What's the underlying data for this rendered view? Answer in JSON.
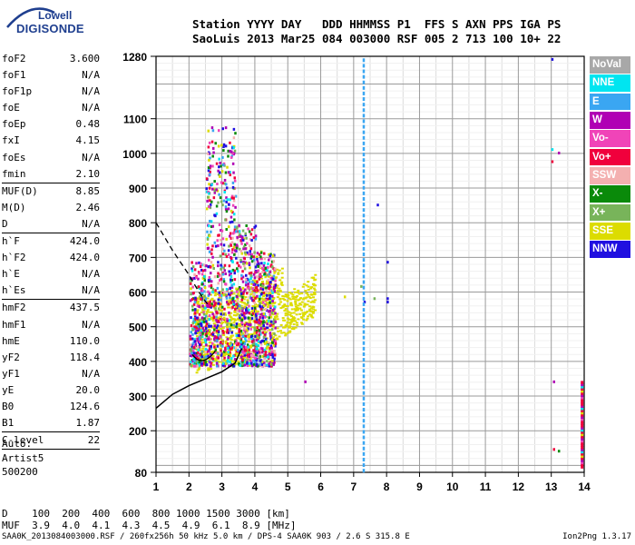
{
  "logo": {
    "line1": "Lowell",
    "line2": "DIGISONDE"
  },
  "header": {
    "line1": "Station YYYY DAY   DDD HHMMSS P1  FFS S AXN PPS IGA PS",
    "line2": "SaoLuis 2013 Mar25 084 003000 RSF 005 2 713 100 10+ 22"
  },
  "params": [
    {
      "name": "foF2",
      "value": "3.600"
    },
    {
      "name": "foF1",
      "value": "N/A"
    },
    {
      "name": "foF1p",
      "value": "N/A"
    },
    {
      "name": "foE",
      "value": "N/A"
    },
    {
      "name": "foEp",
      "value": "0.48"
    },
    {
      "name": "fxI",
      "value": "4.15"
    },
    {
      "name": "foEs",
      "value": "N/A"
    },
    {
      "name": "fmin",
      "value": "2.10",
      "sep": true
    },
    {
      "name": "MUF(D)",
      "value": "8.85"
    },
    {
      "name": "M(D)",
      "value": "2.46"
    },
    {
      "name": "D",
      "value": "N/A",
      "sep": true
    },
    {
      "name": "h`F",
      "value": "424.0"
    },
    {
      "name": "h`F2",
      "value": "424.0"
    },
    {
      "name": "h`E",
      "value": "N/A"
    },
    {
      "name": "h`Es",
      "value": "N/A",
      "sep": true
    },
    {
      "name": "hmF2",
      "value": "437.5"
    },
    {
      "name": "hmF1",
      "value": "N/A"
    },
    {
      "name": "hmE",
      "value": "110.0"
    },
    {
      "name": "yF2",
      "value": "118.4"
    },
    {
      "name": "yF1",
      "value": "N/A"
    },
    {
      "name": "yE",
      "value": "20.0"
    },
    {
      "name": "B0",
      "value": "124.6"
    },
    {
      "name": "B1",
      "value": "1.87",
      "sep": true
    },
    {
      "name": "C-level",
      "value": "22",
      "sep": true
    }
  ],
  "auto": {
    "line1": "Auto:",
    "line2": "Artist5",
    "line3": "500200"
  },
  "dist_table": {
    "row1": "D    100  200  400  600  800 1000 1500 3000 [km]",
    "row2": "MUF  3.9  4.0  4.1  4.3  4.5  4.9  6.1  8.9 [MHz]"
  },
  "footer": {
    "left": "SAA0K_2013084003000.RSF / 260fx256h 50 kHz 5.0 km / DPS-4 SAA0K 903 / 2.6 S 315.8 E",
    "right": "Ion2Png 1.3.17"
  },
  "legend": [
    {
      "label": "NoVal",
      "color": "#a8a8a8"
    },
    {
      "label": "NNE",
      "color": "#00e5f0"
    },
    {
      "label": "E",
      "color": "#3aa6f2"
    },
    {
      "label": "W",
      "color": "#b000b4"
    },
    {
      "label": "Vo-",
      "color": "#f044b8"
    },
    {
      "label": "Vo+",
      "color": "#f0003c"
    },
    {
      "label": "SSW",
      "color": "#f4b0b0"
    },
    {
      "label": "X-",
      "color": "#0a8a0a"
    },
    {
      "label": "X+",
      "color": "#78b45a"
    },
    {
      "label": "SSE",
      "color": "#dcdc00"
    },
    {
      "label": "NNW",
      "color": "#2010e0"
    }
  ],
  "chart_data": {
    "type": "scatter",
    "xlabel": "",
    "ylabel": "",
    "xlim": [
      1,
      14
    ],
    "ylim": [
      80,
      1280
    ],
    "x_ticks": [
      1,
      2,
      3,
      4,
      5,
      6,
      7,
      8,
      9,
      10,
      11,
      12,
      13,
      14
    ],
    "y_ticks": [
      80,
      200,
      300,
      400,
      500,
      600,
      700,
      800,
      900,
      1000,
      1100,
      1280
    ],
    "grid": true,
    "legend_position": "right",
    "clusters": [
      {
        "name": "main-echo-trace",
        "x_range": [
          2.0,
          4.6
        ],
        "y_range": [
          380,
          1100
        ],
        "dominant": [
          "W",
          "Vo+",
          "NNW",
          "X-",
          "Vo-"
        ]
      },
      {
        "name": "sse-trace",
        "x_range": [
          2.2,
          5.8
        ],
        "y_range": [
          370,
          700
        ],
        "dominant": [
          "SSE"
        ]
      }
    ],
    "lines": [
      {
        "name": "vertical-dotted-E",
        "x": 7.3,
        "y_range": [
          80,
          1280
        ],
        "color": "#3aa6f2"
      },
      {
        "name": "right-edge-marks",
        "x": 13.95,
        "y_range": [
          100,
          350
        ]
      }
    ],
    "profile_curve": [
      [
        1.0,
        265
      ],
      [
        1.5,
        305
      ],
      [
        2.0,
        330
      ],
      [
        2.5,
        350
      ],
      [
        3.0,
        370
      ],
      [
        3.4,
        395
      ],
      [
        3.6,
        437
      ]
    ],
    "dashed_curve": [
      [
        1.0,
        800
      ],
      [
        1.5,
        720
      ],
      [
        2.0,
        650
      ],
      [
        2.3,
        600
      ],
      [
        2.6,
        560
      ]
    ]
  }
}
